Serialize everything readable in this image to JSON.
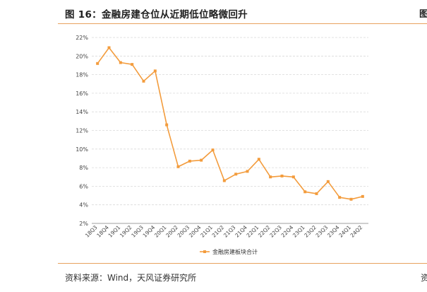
{
  "figure": {
    "title": "图 16：金融房建仓位从近期低位略微回升",
    "source": "资料来源：Wind，天风证券研究所",
    "right_title_stub": "图",
    "right_source_stub": "资"
  },
  "colors": {
    "series": "#f39c3d",
    "accent_rule": "#e8a25e",
    "grid": "#d9d9d9"
  },
  "chart_data": {
    "type": "line",
    "title": "",
    "xlabel": "",
    "ylabel": "",
    "x": [
      "18Q3",
      "18Q4",
      "19Q1",
      "19Q2",
      "19Q3",
      "19Q4",
      "20Q1",
      "20Q2",
      "20Q3",
      "20Q4",
      "21Q1",
      "21Q2",
      "21Q3",
      "21Q4",
      "22Q1",
      "22Q2",
      "22Q3",
      "22Q4",
      "23Q1",
      "23Q2",
      "23Q3",
      "23Q4",
      "24Q1",
      "24Q2"
    ],
    "series": [
      {
        "name": "金融房建板块合计",
        "values": [
          19.2,
          20.9,
          19.3,
          19.1,
          17.3,
          18.4,
          12.6,
          8.1,
          8.7,
          8.8,
          9.9,
          6.6,
          7.3,
          7.6,
          8.9,
          7.0,
          7.1,
          7.0,
          5.4,
          5.2,
          6.5,
          4.8,
          4.6,
          4.9
        ]
      }
    ],
    "y_ticks": [
      "2%",
      "4%",
      "6%",
      "8%",
      "10%",
      "12%",
      "14%",
      "16%",
      "18%",
      "20%",
      "22%"
    ],
    "ylim": [
      2,
      22
    ],
    "grid": "horizontal dashed",
    "legend_position": "bottom-center"
  }
}
